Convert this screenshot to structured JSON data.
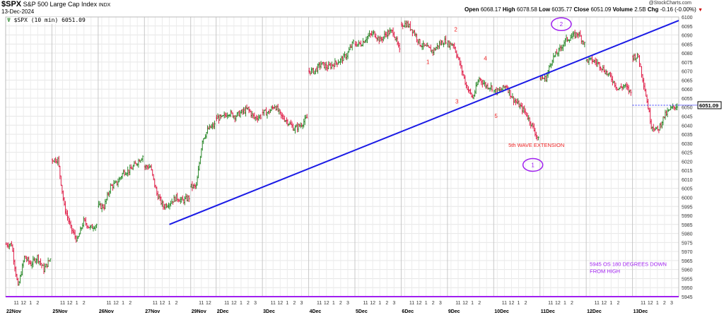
{
  "header": {
    "symbol": "$SPX",
    "name": "S&P 500 Large Cap Index",
    "exchange": "INDX",
    "date": "13-Dec-2024",
    "legend": "$SPX (10 min) 6051.09",
    "copyright": "@StockCharts.com",
    "ohlc": {
      "open_label": "Open",
      "open": "6068.17",
      "high_label": "High",
      "high": "6078.58",
      "low_label": "Low",
      "low": "6035.77",
      "close_label": "Close",
      "close": "6051.09",
      "volume_label": "Volume",
      "volume": "2.5B",
      "chg_label": "Chg",
      "chg": "-0.16 (-0.00%)"
    },
    "down_arrow_icon": "triangle-down-icon"
  },
  "chart_data": {
    "type": "ohlc-bar",
    "interval": "10 min",
    "ylim": [
      5945,
      6100
    ],
    "yticks": [
      5945,
      5950,
      5955,
      5960,
      5965,
      5970,
      5975,
      5980,
      5985,
      5990,
      5995,
      6000,
      6005,
      6010,
      6015,
      6020,
      6025,
      6030,
      6035,
      6040,
      6045,
      6050,
      6055,
      6060,
      6065,
      6070,
      6075,
      6080,
      6085,
      6090,
      6095,
      6100
    ],
    "y_axis_side": "right",
    "grid": true,
    "last_price_label": "6051.09",
    "colors": {
      "up": "#2e8b2e",
      "down": "#e0204a",
      "trendline": "#1a1ae6",
      "annotation": "#a020f0",
      "wave": "#ee2222",
      "lastline": "#3333ff"
    },
    "sessions": [
      {
        "label": "22Nov",
        "hour_ticks": [
          "11",
          "12",
          "1",
          "2"
        ],
        "closes": [
          5974,
          5950,
          5967,
          5963,
          5967,
          5960,
          5966
        ]
      },
      {
        "label": "25Nov",
        "hour_ticks": [
          "11",
          "12",
          "1",
          "2"
        ],
        "closes": [
          6021,
          5995,
          5983,
          5976,
          5987,
          5983,
          5985
        ]
      },
      {
        "label": "26Nov",
        "hour_ticks": [
          "11",
          "12",
          "1",
          "2"
        ],
        "closes": [
          5995,
          6006,
          6008,
          6014,
          6015,
          6019,
          6023
        ]
      },
      {
        "label": "27Nov",
        "hour_ticks": [
          "11",
          "12",
          "1",
          "2"
        ],
        "closes": [
          6017,
          6002,
          5995,
          5997,
          6000,
          5998,
          6000
        ]
      },
      {
        "label": "29Nov",
        "hour_ticks": [
          "11",
          "12"
        ],
        "closes": [
          6006,
          6032,
          6038,
          6040
        ],
        "half": true
      },
      {
        "label": "2Dec",
        "hour_ticks": [
          "11",
          "12",
          "1",
          "2",
          "3"
        ],
        "closes": [
          6044,
          6047,
          6045,
          6047,
          6049,
          6044,
          6045
        ]
      },
      {
        "label": "3Dec",
        "hour_ticks": [
          "11",
          "12",
          "1",
          "2",
          "3"
        ],
        "closes": [
          6047,
          6051,
          6045,
          6042,
          6038,
          6040,
          6044
        ]
      },
      {
        "label": "4Dec",
        "hour_ticks": [
          "11",
          "12",
          "1",
          "2",
          "3"
        ],
        "closes": [
          6070,
          6074,
          6072,
          6074,
          6076,
          6079,
          6086
        ]
      },
      {
        "label": "5Dec",
        "hour_ticks": [
          "11",
          "12",
          "1",
          "2",
          "3"
        ],
        "closes": [
          6085,
          6089,
          6091,
          6087,
          6091,
          6092,
          6081
        ]
      },
      {
        "label": "6Dec",
        "hour_ticks": [
          "11",
          "12",
          "1",
          "2",
          "3"
        ],
        "closes": [
          6096,
          6092,
          6085,
          6083,
          6081,
          6085,
          6087
        ]
      },
      {
        "label": "9Dec",
        "hour_ticks": [
          "11",
          "12",
          "1",
          "2"
        ],
        "closes": [
          6085,
          6074,
          6062,
          6055,
          6066,
          6062,
          6061
        ]
      },
      {
        "label": "10Dec",
        "hour_ticks": [
          "11",
          "12",
          "1",
          "2"
        ],
        "closes": [
          6059,
          6062,
          6055,
          6051,
          6047,
          6040,
          6032
        ]
      },
      {
        "label": "11Dec",
        "hour_ticks": [
          "11",
          "12",
          "1",
          "2"
        ],
        "closes": [
          6066,
          6077,
          6081,
          6087,
          6089,
          6091,
          6085
        ]
      },
      {
        "label": "12Dec",
        "hour_ticks": [
          "11",
          "12",
          "1",
          "2"
        ],
        "closes": [
          6076,
          6074,
          6070,
          6066,
          6060,
          6062,
          6058
        ]
      },
      {
        "label": "13Dec",
        "hour_ticks": [
          "11",
          "12",
          "1",
          "2",
          "3"
        ],
        "closes": [
          6078,
          6060,
          6040,
          6037,
          6045,
          6049,
          6051
        ]
      }
    ],
    "trendline": {
      "start": {
        "session": "27Nov",
        "time": "13:00",
        "price": 5985
      },
      "end": {
        "session": "13Dec",
        "time": "16:00",
        "price": 6098
      }
    },
    "horizontal_line": {
      "price": 5945
    },
    "last_price_dashed": {
      "from": {
        "session": "13Dec",
        "time": "09:30"
      },
      "price": 6051.09
    },
    "wave_labels": [
      {
        "text": "1",
        "session": "6Dec",
        "time": "13:15",
        "price": 6074
      },
      {
        "text": "2",
        "session": "9Dec",
        "time": "10:40",
        "price": 6092
      },
      {
        "text": "3",
        "session": "9Dec",
        "time": "10:50",
        "price": 6052
      },
      {
        "text": "4",
        "session": "9Dec",
        "time": "14:50",
        "price": 6076
      },
      {
        "text": "5",
        "session": "10Dec",
        "time": "09:50",
        "price": 6044
      },
      {
        "text": "5th WAVE EXTENSION",
        "session": "10Dec",
        "time": "15:30",
        "price": 6028
      }
    ],
    "circled_labels": [
      {
        "text": "1",
        "session": "10Dec",
        "time": "15:00",
        "price": 6018
      },
      {
        "text": "2",
        "session": "11Dec",
        "time": "12:30",
        "price": 6096
      }
    ],
    "note": {
      "lines": [
        "5945 OS 180 DEGREES DOWN",
        "FROM HIGH"
      ],
      "session": "12Dec",
      "time": "10:00",
      "price": 5962
    }
  }
}
